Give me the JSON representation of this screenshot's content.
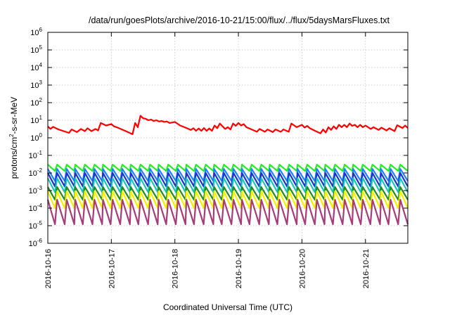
{
  "chart_data": {
    "type": "line",
    "title": "/data/run/goesPlots/archive/2016-10-21/15:00/flux/../flux/5daysMarsFluxes.txt",
    "xlabel": "Coordinated Universal Time (UTC)",
    "ylabel": "protons/cm²-s-sr-MeV",
    "yscale": "log",
    "ylim_exponent": [
      -6,
      6
    ],
    "y_tick_labels": [
      {
        "base": "10",
        "exp": "6"
      },
      {
        "base": "10",
        "exp": "5"
      },
      {
        "base": "10",
        "exp": "4"
      },
      {
        "base": "10",
        "exp": "3"
      },
      {
        "base": "10",
        "exp": "2"
      },
      {
        "base": "10",
        "exp": "1"
      },
      {
        "base": "10",
        "exp": "0"
      },
      {
        "base": "10",
        "exp": "-1"
      },
      {
        "base": "10",
        "exp": "-2"
      },
      {
        "base": "10",
        "exp": "-3"
      },
      {
        "base": "10",
        "exp": "-4"
      },
      {
        "base": "10",
        "exp": "-5"
      },
      {
        "base": "10",
        "exp": "-6"
      }
    ],
    "x_start": "2016-10-16",
    "x_end": "2016-10-21T16:00",
    "x_tick_labels": [
      "2016-10-16",
      "2016-10-17",
      "2016-10-18",
      "2016-10-19",
      "2016-10-20",
      "2016-10-21"
    ],
    "grid": true,
    "legend": "none",
    "series": [
      {
        "color": "#ff0000",
        "points": [
          [
            "2016-10-16T00:00",
            4.5
          ],
          [
            "2016-10-16T01:00",
            3.2
          ],
          [
            "2016-10-16T02:00",
            4.2
          ],
          [
            "2016-10-16T04:00",
            3.0
          ],
          [
            "2016-10-16T06:00",
            2.4
          ],
          [
            "2016-10-16T08:00",
            1.9
          ],
          [
            "2016-10-16T09:00",
            3.0
          ],
          [
            "2016-10-16T11:00",
            2.1
          ],
          [
            "2016-10-16T12:30",
            3.2
          ],
          [
            "2016-10-16T14:00",
            2.4
          ],
          [
            "2016-10-16T15:00",
            3.5
          ],
          [
            "2016-10-16T16:30",
            2.4
          ],
          [
            "2016-10-16T18:00",
            3.2
          ],
          [
            "2016-10-16T19:00",
            2.6
          ],
          [
            "2016-10-16T20:00",
            7.0
          ],
          [
            "2016-10-16T22:00",
            5.0
          ],
          [
            "2016-10-17T00:00",
            6.0
          ],
          [
            "2016-10-17T01:00",
            4.5
          ],
          [
            "2016-10-17T02:00",
            4.0
          ],
          [
            "2016-10-17T04:00",
            3.0
          ],
          [
            "2016-10-17T06:00",
            2.2
          ],
          [
            "2016-10-17T08:00",
            1.6
          ],
          [
            "2016-10-17T09:00",
            7.0
          ],
          [
            "2016-10-17T10:00",
            4.0
          ],
          [
            "2016-10-17T11:00",
            18.0
          ],
          [
            "2016-10-17T12:00",
            13.0
          ],
          [
            "2016-10-17T13:00",
            12.0
          ],
          [
            "2016-10-17T14:00",
            10.0
          ],
          [
            "2016-10-17T15:00",
            11.0
          ],
          [
            "2016-10-17T16:00",
            9.0
          ],
          [
            "2016-10-17T17:00",
            10.0
          ],
          [
            "2016-10-17T18:00",
            8.5
          ],
          [
            "2016-10-17T19:00",
            9.0
          ],
          [
            "2016-10-17T20:00",
            8.0
          ],
          [
            "2016-10-17T21:00",
            8.5
          ],
          [
            "2016-10-17T22:00",
            7.0
          ],
          [
            "2016-10-18T00:00",
            8.0
          ],
          [
            "2016-10-18T02:00",
            5.0
          ],
          [
            "2016-10-18T04:00",
            3.8
          ],
          [
            "2016-10-18T06:00",
            2.8
          ],
          [
            "2016-10-18T07:00",
            3.5
          ],
          [
            "2016-10-18T08:00",
            2.5
          ],
          [
            "2016-10-18T09:00",
            3.4
          ],
          [
            "2016-10-18T10:00",
            2.5
          ],
          [
            "2016-10-18T11:00",
            3.6
          ],
          [
            "2016-10-18T12:00",
            2.5
          ],
          [
            "2016-10-18T13:00",
            3.4
          ],
          [
            "2016-10-18T14:00",
            2.5
          ],
          [
            "2016-10-18T15:00",
            5.0
          ],
          [
            "2016-10-18T16:00",
            3.5
          ],
          [
            "2016-10-18T17:00",
            6.5
          ],
          [
            "2016-10-18T18:00",
            4.5
          ],
          [
            "2016-10-18T19:00",
            3.2
          ],
          [
            "2016-10-18T20:00",
            4.0
          ],
          [
            "2016-10-18T21:00",
            3.0
          ],
          [
            "2016-10-18T22:00",
            6.5
          ],
          [
            "2016-10-18T23:00",
            4.8
          ],
          [
            "2016-10-19T00:00",
            7.0
          ],
          [
            "2016-10-19T01:00",
            5.0
          ],
          [
            "2016-10-19T02:00",
            6.0
          ],
          [
            "2016-10-19T03:00",
            4.0
          ],
          [
            "2016-10-19T05:00",
            3.0
          ],
          [
            "2016-10-19T07:00",
            2.2
          ],
          [
            "2016-10-19T08:00",
            3.2
          ],
          [
            "2016-10-19T10:00",
            2.2
          ],
          [
            "2016-10-19T11:00",
            3.0
          ],
          [
            "2016-10-19T13:00",
            2.1
          ],
          [
            "2016-10-19T14:00",
            3.0
          ],
          [
            "2016-10-19T16:00",
            2.2
          ],
          [
            "2016-10-19T17:00",
            3.0
          ],
          [
            "2016-10-19T19:00",
            2.2
          ],
          [
            "2016-10-19T20:00",
            6.5
          ],
          [
            "2016-10-19T22:00",
            4.0
          ],
          [
            "2016-10-20T00:00",
            5.5
          ],
          [
            "2016-10-20T01:00",
            3.8
          ],
          [
            "2016-10-20T02:00",
            4.8
          ],
          [
            "2016-10-20T03:00",
            3.5
          ],
          [
            "2016-10-20T05:00",
            2.5
          ],
          [
            "2016-10-20T07:00",
            1.8
          ],
          [
            "2016-10-20T08:00",
            3.0
          ],
          [
            "2016-10-20T09:00",
            2.0
          ],
          [
            "2016-10-20T10:00",
            4.0
          ],
          [
            "2016-10-20T11:00",
            2.8
          ],
          [
            "2016-10-20T12:00",
            4.5
          ],
          [
            "2016-10-20T13:00",
            3.2
          ],
          [
            "2016-10-20T14:00",
            5.5
          ],
          [
            "2016-10-20T15:00",
            4.0
          ],
          [
            "2016-10-20T16:00",
            5.5
          ],
          [
            "2016-10-20T17:00",
            4.0
          ],
          [
            "2016-10-20T18:00",
            6.5
          ],
          [
            "2016-10-20T19:00",
            4.8
          ],
          [
            "2016-10-20T20:00",
            5.5
          ],
          [
            "2016-10-20T21:00",
            4.0
          ],
          [
            "2016-10-20T22:00",
            5.5
          ],
          [
            "2016-10-20T23:00",
            4.0
          ],
          [
            "2016-10-21T00:00",
            5.0
          ],
          [
            "2016-10-21T02:00",
            3.2
          ],
          [
            "2016-10-21T03:00",
            4.0
          ],
          [
            "2016-10-21T05:00",
            2.8
          ],
          [
            "2016-10-21T06:00",
            3.8
          ],
          [
            "2016-10-21T08:00",
            2.6
          ],
          [
            "2016-10-21T09:00",
            3.5
          ],
          [
            "2016-10-21T11:00",
            2.4
          ],
          [
            "2016-10-21T12:00",
            5.2
          ],
          [
            "2016-10-21T14:00",
            3.6
          ],
          [
            "2016-10-21T15:00",
            5.0
          ],
          [
            "2016-10-21T16:00",
            3.6
          ]
        ]
      },
      {
        "color": "#22ee22",
        "pattern": "sawtooth",
        "period_hours": 3.5,
        "high": 0.03,
        "low": 0.013
      },
      {
        "color": "#1e7fff",
        "pattern": "sawtooth",
        "period_hours": 3.5,
        "high": 0.017,
        "low": 0.0035
      },
      {
        "color": "#1a33cc",
        "pattern": "sawtooth",
        "period_hours": 3.5,
        "high": 0.01,
        "low": 0.0017
      },
      {
        "color": "#17c6b8",
        "pattern": "sawtooth",
        "period_hours": 3.5,
        "high": 0.005,
        "low": 0.0008
      },
      {
        "color": "#228b22",
        "pattern": "sawtooth",
        "period_hours": 3.5,
        "high": 0.0016,
        "low": 0.0003
      },
      {
        "color": "#f2f200",
        "pattern": "sawtooth",
        "period_hours": 3.5,
        "high": 0.0009,
        "low": 0.0001
      },
      {
        "color": "#a63d7a",
        "pattern": "sawtooth",
        "period_hours": 3.5,
        "high": 0.0003,
        "low": 1.2e-05
      }
    ]
  }
}
